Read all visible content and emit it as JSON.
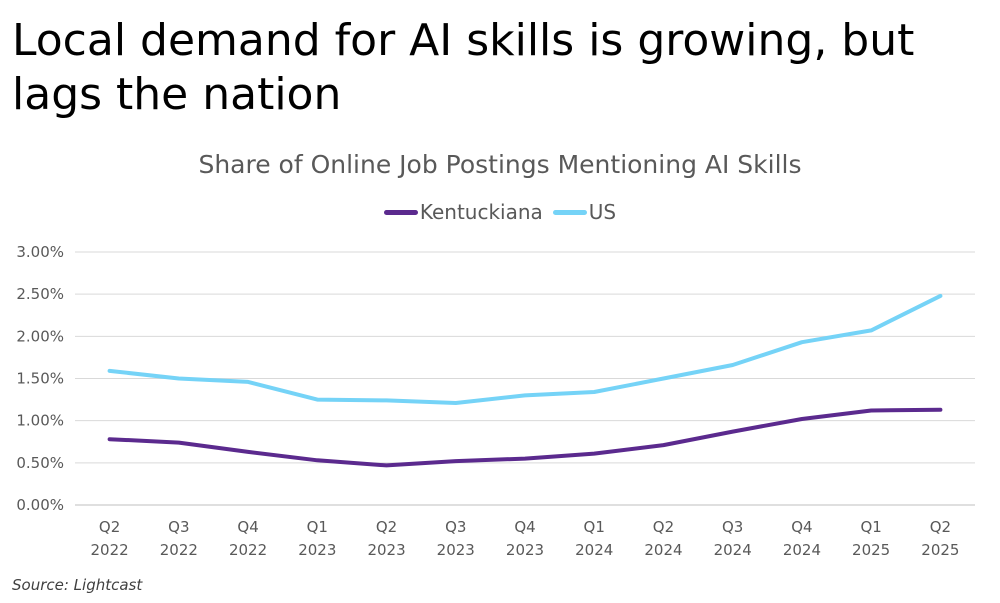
{
  "headline": "Local demand for AI skills is growing, but lags the nation",
  "source": "Source: Lightcast",
  "chart_data": {
    "type": "line",
    "title": "Share of Online Job Postings Mentioning AI Skills",
    "xlabel": "",
    "ylabel": "",
    "categories": [
      [
        "Q2",
        "2022"
      ],
      [
        "Q3",
        "2022"
      ],
      [
        "Q4",
        "2022"
      ],
      [
        "Q1",
        "2023"
      ],
      [
        "Q2",
        "2023"
      ],
      [
        "Q3",
        "2023"
      ],
      [
        "Q4",
        "2023"
      ],
      [
        "Q1",
        "2024"
      ],
      [
        "Q2",
        "2024"
      ],
      [
        "Q3",
        "2024"
      ],
      [
        "Q4",
        "2024"
      ],
      [
        "Q1",
        "2025"
      ],
      [
        "Q2",
        "2025"
      ]
    ],
    "y_ticks": [
      "0.00%",
      "0.50%",
      "1.00%",
      "1.50%",
      "2.00%",
      "2.50%",
      "3.00%"
    ],
    "ylim": [
      0,
      3.0
    ],
    "grid": true,
    "legend_position": "top-center",
    "series": [
      {
        "name": "Kentuckiana",
        "color": "#5b2a8e",
        "values": [
          0.78,
          0.74,
          0.63,
          0.53,
          0.47,
          0.52,
          0.55,
          0.61,
          0.71,
          0.87,
          1.02,
          1.12,
          1.13
        ]
      },
      {
        "name": "US",
        "color": "#75d3f7",
        "values": [
          1.59,
          1.5,
          1.46,
          1.25,
          1.24,
          1.21,
          1.3,
          1.34,
          1.5,
          1.66,
          1.93,
          2.07,
          2.48
        ]
      }
    ]
  }
}
